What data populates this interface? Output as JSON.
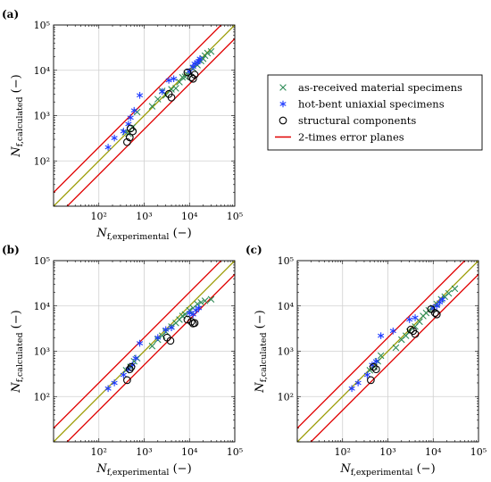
{
  "figure": {
    "legend": {
      "entries": [
        {
          "key": "asreceived",
          "label": "as-received material specimens",
          "marker": "x",
          "color": "#2e8b57"
        },
        {
          "key": "hotbent",
          "label": "hot-bent uniaxial specimens",
          "marker": "star",
          "color": "#1f3bff"
        },
        {
          "key": "structural",
          "label": "structural components",
          "marker": "circle",
          "color": "#000000"
        },
        {
          "key": "errband",
          "label": "2-times error planes",
          "marker": "line",
          "color": "#e00000"
        }
      ]
    }
  },
  "chart_data": [
    {
      "type": "scatter",
      "panel": "(a)",
      "xlabel": "N_{f,experimental} (−)",
      "ylabel": "N_{f,calculated} (−)",
      "xscale": "log",
      "yscale": "log",
      "xlim": [
        10,
        100000
      ],
      "ylim": [
        10,
        100000
      ],
      "grid": true,
      "tick_labels": [
        "10²",
        "10³",
        "10⁴",
        "10⁵"
      ],
      "reference_lines": {
        "identity_color": "#9a9a00",
        "error_factor": 2,
        "error_color": "#e00000"
      },
      "series": [
        {
          "key": "asreceived",
          "points": [
            [
              380,
              430
            ],
            [
              450,
              400
            ],
            [
              550,
              550
            ],
            [
              700,
              1200
            ],
            [
              1500,
              1600
            ],
            [
              2000,
              2300
            ],
            [
              2500,
              3500
            ],
            [
              3000,
              2800
            ],
            [
              4000,
              3800
            ],
            [
              5000,
              4000
            ],
            [
              6000,
              5500
            ],
            [
              7000,
              7000
            ],
            [
              8000,
              7200
            ],
            [
              9000,
              8000
            ],
            [
              10000,
              9000
            ],
            [
              12000,
              11000
            ],
            [
              15000,
              13000
            ],
            [
              18000,
              16000
            ],
            [
              20000,
              18000
            ],
            [
              22000,
              21000
            ],
            [
              25000,
              24000
            ],
            [
              30000,
              26000
            ]
          ]
        },
        {
          "key": "hotbent",
          "points": [
            [
              160,
              200
            ],
            [
              220,
              320
            ],
            [
              350,
              450
            ],
            [
              450,
              650
            ],
            [
              500,
              900
            ],
            [
              600,
              1300
            ],
            [
              800,
              2800
            ],
            [
              2500,
              3400
            ],
            [
              3500,
              6000
            ],
            [
              4500,
              6500
            ],
            [
              10000,
              9500
            ],
            [
              12000,
              12000
            ],
            [
              13000,
              14000
            ],
            [
              15000,
              15000
            ],
            [
              16000,
              16000
            ],
            [
              17000,
              18000
            ]
          ]
        },
        {
          "key": "structural",
          "points": [
            [
              420,
              260
            ],
            [
              480,
              330
            ],
            [
              500,
              520
            ],
            [
              560,
              450
            ],
            [
              3500,
              3000
            ],
            [
              4000,
              2500
            ],
            [
              9000,
              9000
            ],
            [
              11000,
              7000
            ],
            [
              12000,
              6500
            ],
            [
              13000,
              8000
            ]
          ]
        }
      ]
    },
    {
      "type": "scatter",
      "panel": "(b)",
      "xlabel": "N_{f,experimental} (−)",
      "ylabel": "N_{f,calculated} (−)",
      "xscale": "log",
      "yscale": "log",
      "xlim": [
        10,
        100000
      ],
      "ylim": [
        10,
        100000
      ],
      "grid": true,
      "tick_labels": [
        "10²",
        "10³",
        "10⁴",
        "10⁵"
      ],
      "reference_lines": {
        "identity_color": "#9a9a00",
        "error_factor": 2,
        "error_color": "#e00000"
      },
      "series": [
        {
          "key": "asreceived",
          "points": [
            [
              400,
              380
            ],
            [
              500,
              450
            ],
            [
              600,
              600
            ],
            [
              700,
              700
            ],
            [
              1500,
              1300
            ],
            [
              2000,
              1800
            ],
            [
              2500,
              2200
            ],
            [
              3000,
              2700
            ],
            [
              4000,
              3500
            ],
            [
              5000,
              4200
            ],
            [
              6000,
              5000
            ],
            [
              7000,
              6000
            ],
            [
              8000,
              6500
            ],
            [
              10000,
              8000
            ],
            [
              12000,
              9000
            ],
            [
              15000,
              11000
            ],
            [
              18000,
              12000
            ],
            [
              22000,
              13000
            ],
            [
              30000,
              14000
            ]
          ]
        },
        {
          "key": "hotbent",
          "points": [
            [
              160,
              150
            ],
            [
              220,
              200
            ],
            [
              350,
              300
            ],
            [
              450,
              400
            ],
            [
              550,
              500
            ],
            [
              650,
              700
            ],
            [
              800,
              1500
            ],
            [
              2000,
              2000
            ],
            [
              3000,
              3000
            ],
            [
              4000,
              3300
            ],
            [
              10000,
              7000
            ],
            [
              12000,
              6500
            ],
            [
              14000,
              8000
            ],
            [
              16000,
              9000
            ]
          ]
        },
        {
          "key": "structural",
          "points": [
            [
              420,
              230
            ],
            [
              480,
              400
            ],
            [
              520,
              450
            ],
            [
              3200,
              2000
            ],
            [
              3800,
              1700
            ],
            [
              9000,
              5000
            ],
            [
              11000,
              4500
            ],
            [
              12000,
              4100
            ],
            [
              13000,
              4200
            ]
          ]
        }
      ]
    },
    {
      "type": "scatter",
      "panel": "(c)",
      "xlabel": "N_{f,experimental} (−)",
      "ylabel": "N_{f,calculated} (−)",
      "xscale": "log",
      "yscale": "log",
      "xlim": [
        10,
        100000
      ],
      "ylim": [
        10,
        100000
      ],
      "grid": true,
      "tick_labels": [
        "10²",
        "10³",
        "10⁴",
        "10⁵"
      ],
      "reference_lines": {
        "identity_color": "#9a9a00",
        "error_factor": 2,
        "error_color": "#e00000"
      },
      "series": [
        {
          "key": "asreceived",
          "points": [
            [
              400,
              380
            ],
            [
              500,
              450
            ],
            [
              600,
              600
            ],
            [
              700,
              800
            ],
            [
              1500,
              1200
            ],
            [
              2000,
              1800
            ],
            [
              2500,
              2200
            ],
            [
              3000,
              2700
            ],
            [
              4000,
              3500
            ],
            [
              5000,
              4500
            ],
            [
              6000,
              6000
            ],
            [
              7000,
              7000
            ],
            [
              8000,
              8000
            ],
            [
              10000,
              9000
            ],
            [
              12000,
              11000
            ],
            [
              15000,
              14000
            ],
            [
              18000,
              16000
            ],
            [
              22000,
              19000
            ],
            [
              30000,
              24000
            ]
          ]
        },
        {
          "key": "hotbent",
          "points": [
            [
              160,
              150
            ],
            [
              220,
              200
            ],
            [
              350,
              300
            ],
            [
              450,
              500
            ],
            [
              550,
              600
            ],
            [
              700,
              2200
            ],
            [
              1300,
              2800
            ],
            [
              3000,
              5000
            ],
            [
              4000,
              5500
            ],
            [
              10000,
              9000
            ],
            [
              12000,
              10000
            ],
            [
              14000,
              12000
            ],
            [
              16000,
              14000
            ]
          ]
        },
        {
          "key": "structural",
          "points": [
            [
              420,
              230
            ],
            [
              480,
              450
            ],
            [
              550,
              400
            ],
            [
              3200,
              3000
            ],
            [
              3600,
              2800
            ],
            [
              4000,
              2400
            ],
            [
              9000,
              8500
            ],
            [
              11000,
              7000
            ],
            [
              12000,
              6500
            ]
          ]
        }
      ]
    }
  ]
}
